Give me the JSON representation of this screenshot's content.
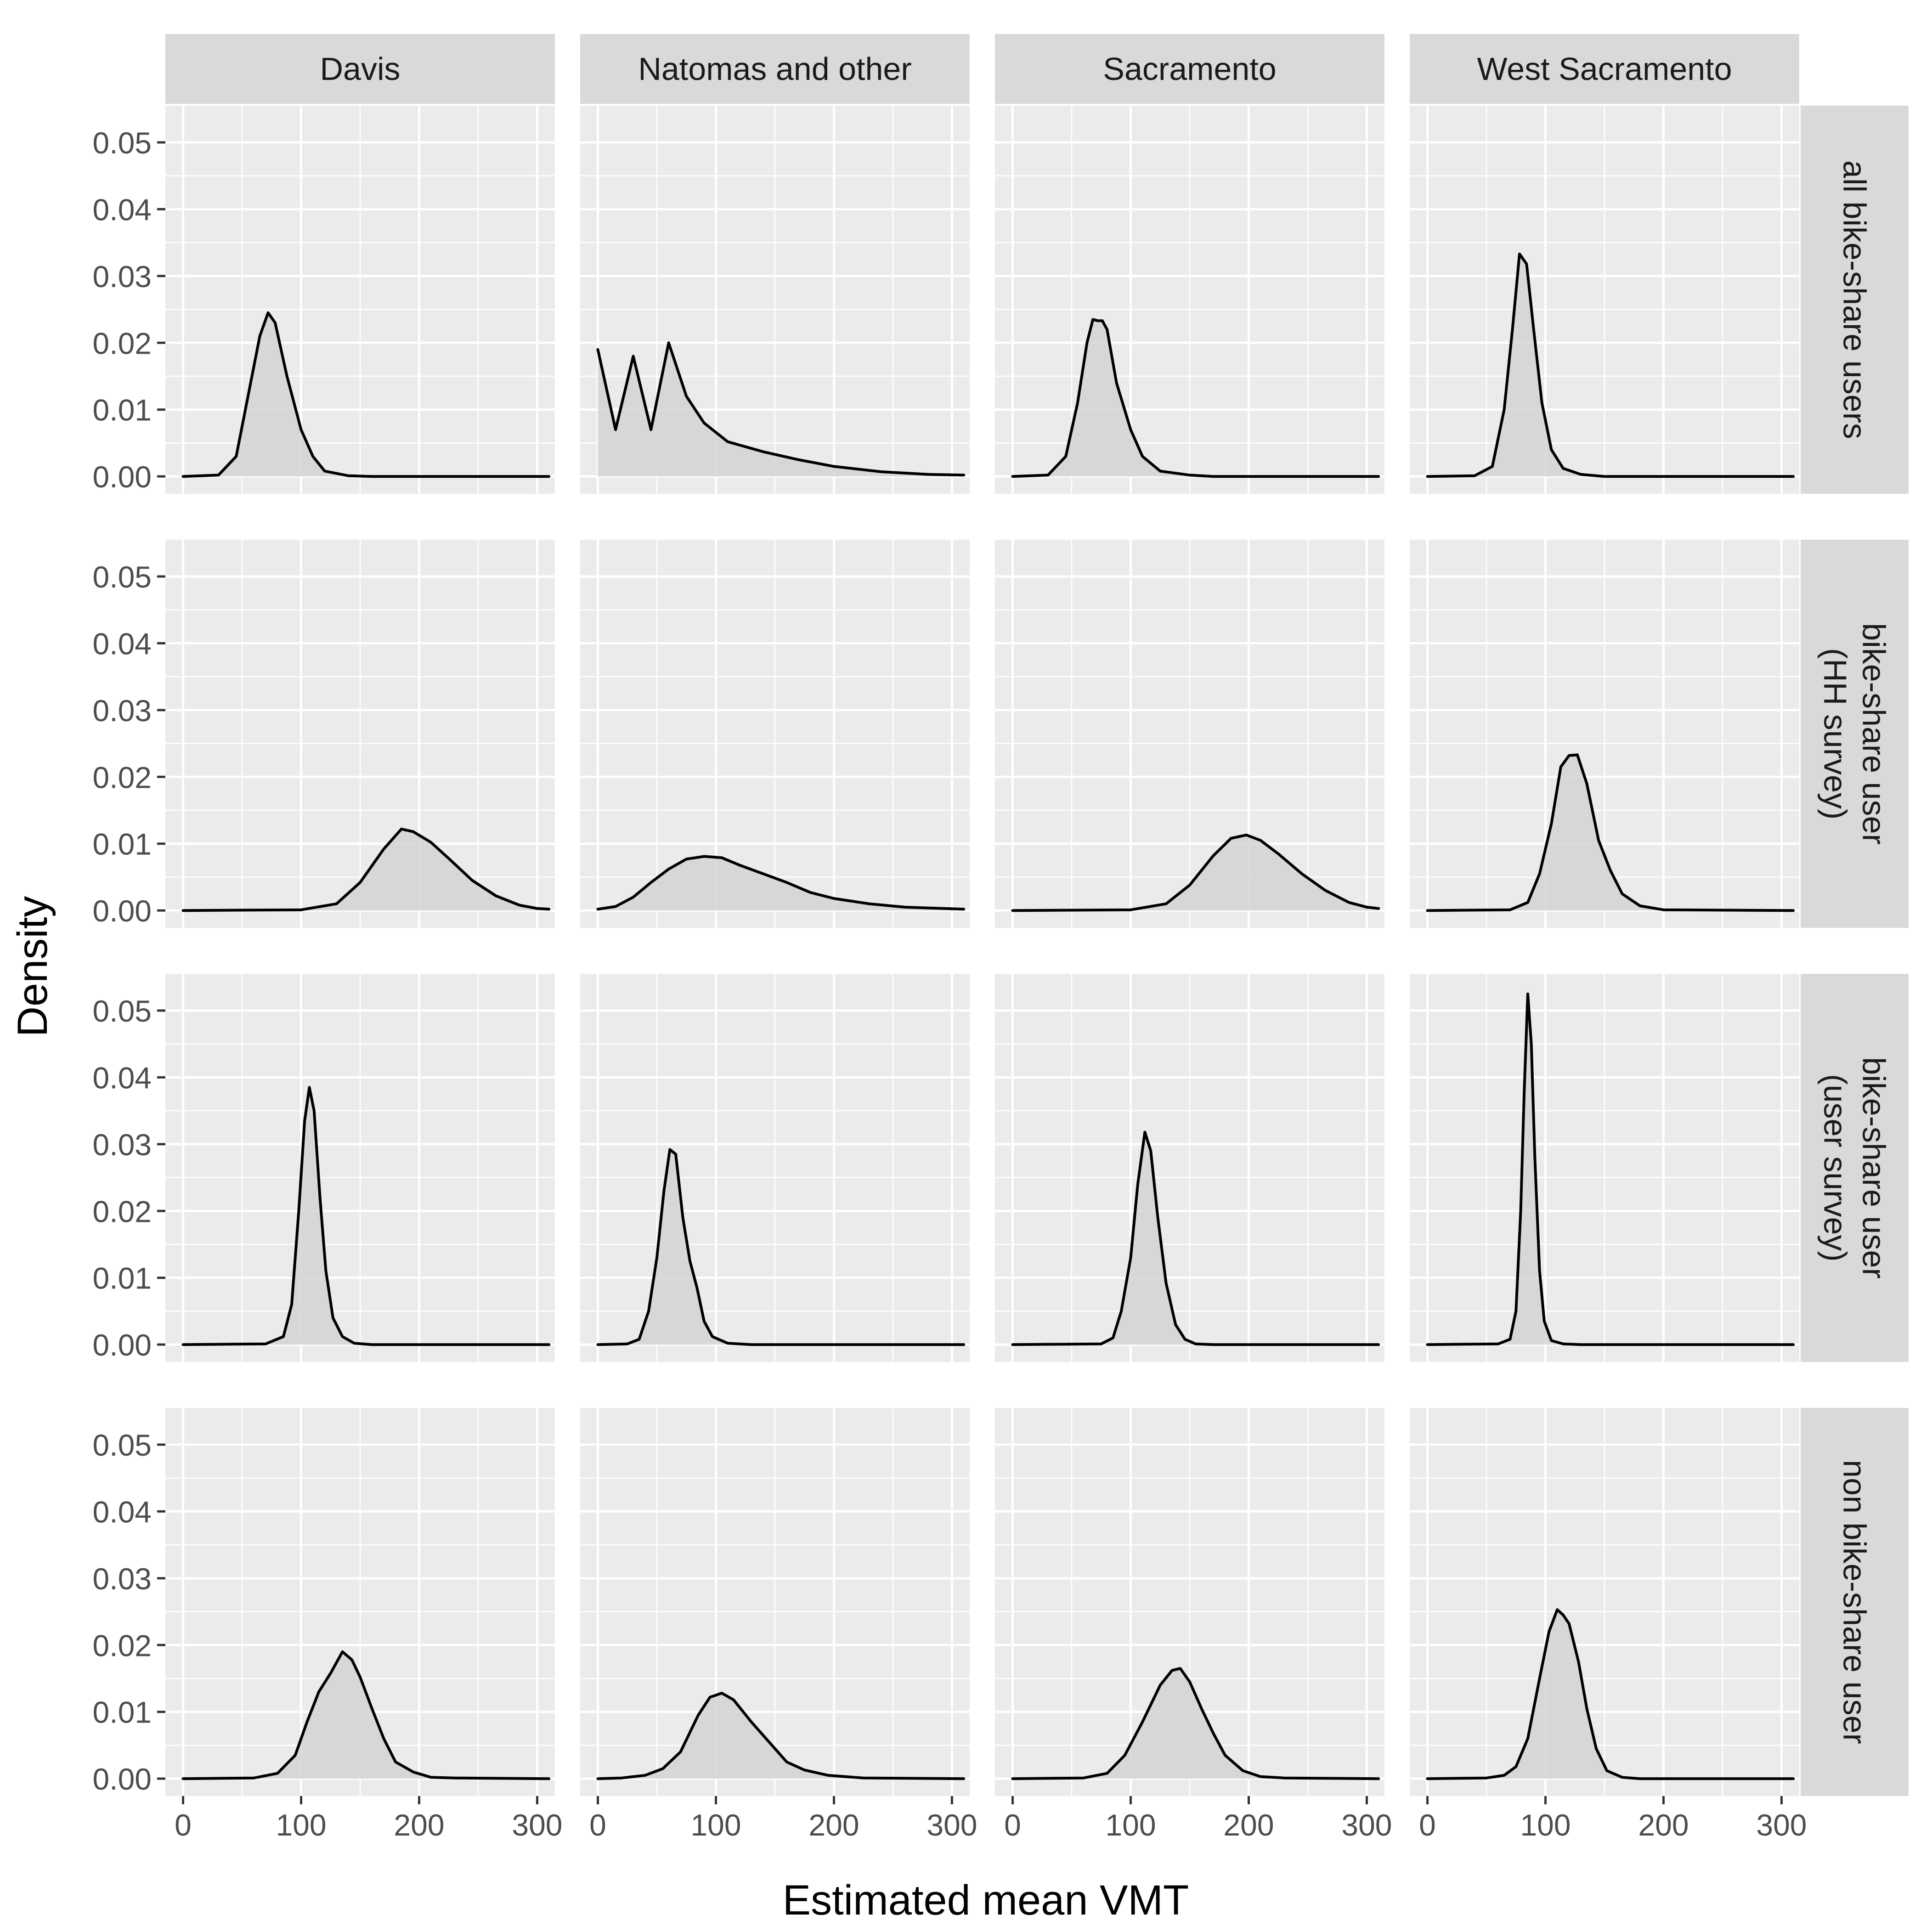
{
  "chart_data": {
    "type": "area",
    "subtype": "faceted-density",
    "xlabel": "Estimated mean VMT",
    "ylabel": "Density",
    "xlim": [
      -15,
      315
    ],
    "ylim": [
      -0.0026,
      0.0555
    ],
    "x_ticks": [
      0,
      100,
      200,
      300
    ],
    "x_tick_labels": [
      "0",
      "100",
      "200",
      "300"
    ],
    "y_ticks": [
      0,
      0.01,
      0.02,
      0.03,
      0.04,
      0.05
    ],
    "y_tick_labels": [
      "0.00",
      "0.01",
      "0.02",
      "0.03",
      "0.04",
      "0.05"
    ],
    "grid": true,
    "columns": [
      "Davis",
      "Natomas and other",
      "Sacramento",
      "West Sacramento"
    ],
    "rows": [
      {
        "label_lines": [
          "all bike-share users"
        ]
      },
      {
        "label_lines": [
          "bike-share user",
          "(HH survey)"
        ]
      },
      {
        "label_lines": [
          "bike-share user",
          "(user survey)"
        ]
      },
      {
        "label_lines": [
          "non bike-share user"
        ]
      }
    ],
    "colors": {
      "panel_bg": "#EBEBEB",
      "strip_bg": "#D9D9D9",
      "grid": "#FFFFFF",
      "line": "#000000",
      "fill": "#D3D3D3"
    },
    "panels": [
      [
        {
          "points": [
            [
              0,
              0
            ],
            [
              30,
              0.0002
            ],
            [
              45,
              0.003
            ],
            [
              55,
              0.012
            ],
            [
              65,
              0.021
            ],
            [
              72,
              0.0245
            ],
            [
              78,
              0.023
            ],
            [
              88,
              0.015
            ],
            [
              100,
              0.007
            ],
            [
              110,
              0.003
            ],
            [
              120,
              0.0008
            ],
            [
              140,
              0.0001
            ],
            [
              160,
              0
            ],
            [
              310,
              0
            ]
          ]
        },
        {
          "points": [
            [
              0,
              0.019
            ],
            [
              15,
              0.007
            ],
            [
              30,
              0.018
            ],
            [
              45,
              0.007
            ],
            [
              60,
              0.02
            ],
            [
              75,
              0.012
            ],
            [
              90,
              0.008
            ],
            [
              110,
              0.0052
            ],
            [
              140,
              0.0037
            ],
            [
              170,
              0.0025
            ],
            [
              200,
              0.0015
            ],
            [
              240,
              0.0007
            ],
            [
              280,
              0.0003
            ],
            [
              310,
              0.0002
            ]
          ]
        },
        {
          "points": [
            [
              0,
              0
            ],
            [
              30,
              0.0002
            ],
            [
              45,
              0.003
            ],
            [
              55,
              0.011
            ],
            [
              63,
              0.02
            ],
            [
              68,
              0.0235
            ],
            [
              72,
              0.0233
            ],
            [
              76,
              0.0233
            ],
            [
              80,
              0.022
            ],
            [
              88,
              0.014
            ],
            [
              100,
              0.007
            ],
            [
              110,
              0.003
            ],
            [
              125,
              0.0008
            ],
            [
              150,
              0.0002
            ],
            [
              170,
              0
            ],
            [
              310,
              0
            ]
          ]
        },
        {
          "points": [
            [
              0,
              0
            ],
            [
              40,
              0.0001
            ],
            [
              55,
              0.0015
            ],
            [
              65,
              0.01
            ],
            [
              72,
              0.022
            ],
            [
              78,
              0.0333
            ],
            [
              84,
              0.0318
            ],
            [
              90,
              0.022
            ],
            [
              97,
              0.011
            ],
            [
              105,
              0.004
            ],
            [
              115,
              0.0012
            ],
            [
              130,
              0.0003
            ],
            [
              150,
              0
            ],
            [
              310,
              0
            ]
          ]
        }
      ],
      [
        {
          "points": [
            [
              0,
              0
            ],
            [
              100,
              0.0001
            ],
            [
              130,
              0.001
            ],
            [
              150,
              0.0042
            ],
            [
              170,
              0.0092
            ],
            [
              185,
              0.0122
            ],
            [
              195,
              0.0118
            ],
            [
              210,
              0.0102
            ],
            [
              225,
              0.0078
            ],
            [
              245,
              0.0045
            ],
            [
              265,
              0.0022
            ],
            [
              285,
              0.0008
            ],
            [
              300,
              0.0003
            ],
            [
              310,
              0.0002
            ]
          ]
        },
        {
          "points": [
            [
              0,
              0.0002
            ],
            [
              15,
              0.0006
            ],
            [
              30,
              0.002
            ],
            [
              45,
              0.0042
            ],
            [
              60,
              0.0062
            ],
            [
              75,
              0.0077
            ],
            [
              90,
              0.0081
            ],
            [
              105,
              0.0079
            ],
            [
              120,
              0.0068
            ],
            [
              140,
              0.0055
            ],
            [
              160,
              0.0042
            ],
            [
              180,
              0.0027
            ],
            [
              200,
              0.0018
            ],
            [
              230,
              0.001
            ],
            [
              260,
              0.0005
            ],
            [
              310,
              0.0002
            ]
          ]
        },
        {
          "points": [
            [
              0,
              0
            ],
            [
              100,
              0.0001
            ],
            [
              130,
              0.001
            ],
            [
              150,
              0.0038
            ],
            [
              170,
              0.0082
            ],
            [
              185,
              0.0108
            ],
            [
              198,
              0.0113
            ],
            [
              210,
              0.0105
            ],
            [
              225,
              0.0085
            ],
            [
              245,
              0.0055
            ],
            [
              265,
              0.003
            ],
            [
              285,
              0.0012
            ],
            [
              300,
              0.0005
            ],
            [
              310,
              0.0003
            ]
          ]
        },
        {
          "points": [
            [
              0,
              0
            ],
            [
              70,
              0.0001
            ],
            [
              85,
              0.0012
            ],
            [
              95,
              0.0055
            ],
            [
              105,
              0.013
            ],
            [
              113,
              0.0215
            ],
            [
              120,
              0.0232
            ],
            [
              127,
              0.0233
            ],
            [
              135,
              0.019
            ],
            [
              145,
              0.0105
            ],
            [
              155,
              0.006
            ],
            [
              165,
              0.0025
            ],
            [
              180,
              0.0007
            ],
            [
              200,
              0.0001
            ],
            [
              310,
              0
            ]
          ]
        }
      ],
      [
        {
          "points": [
            [
              0,
              0
            ],
            [
              70,
              0.0001
            ],
            [
              85,
              0.0012
            ],
            [
              92,
              0.006
            ],
            [
              98,
              0.02
            ],
            [
              103,
              0.0335
            ],
            [
              107,
              0.0385
            ],
            [
              111,
              0.035
            ],
            [
              116,
              0.022
            ],
            [
              121,
              0.011
            ],
            [
              127,
              0.004
            ],
            [
              135,
              0.0012
            ],
            [
              145,
              0.0002
            ],
            [
              160,
              0
            ],
            [
              310,
              0
            ]
          ]
        },
        {
          "points": [
            [
              0,
              0
            ],
            [
              25,
              0.0001
            ],
            [
              35,
              0.0008
            ],
            [
              43,
              0.005
            ],
            [
              50,
              0.013
            ],
            [
              56,
              0.023
            ],
            [
              61,
              0.0292
            ],
            [
              66,
              0.0285
            ],
            [
              72,
              0.019
            ],
            [
              78,
              0.0125
            ],
            [
              84,
              0.0085
            ],
            [
              90,
              0.0035
            ],
            [
              97,
              0.0012
            ],
            [
              110,
              0.0002
            ],
            [
              130,
              0
            ],
            [
              310,
              0
            ]
          ]
        },
        {
          "points": [
            [
              0,
              0
            ],
            [
              75,
              0.0001
            ],
            [
              85,
              0.001
            ],
            [
              92,
              0.005
            ],
            [
              100,
              0.013
            ],
            [
              106,
              0.024
            ],
            [
              112,
              0.0318
            ],
            [
              117,
              0.029
            ],
            [
              123,
              0.019
            ],
            [
              130,
              0.0092
            ],
            [
              138,
              0.003
            ],
            [
              146,
              0.0008
            ],
            [
              155,
              0.0001
            ],
            [
              170,
              0
            ],
            [
              310,
              0
            ]
          ]
        },
        {
          "points": [
            [
              0,
              0
            ],
            [
              60,
              0.0001
            ],
            [
              70,
              0.0008
            ],
            [
              75,
              0.005
            ],
            [
              79,
              0.02
            ],
            [
              82,
              0.038
            ],
            [
              85,
              0.0525
            ],
            [
              88,
              0.045
            ],
            [
              91,
              0.028
            ],
            [
              95,
              0.011
            ],
            [
              99,
              0.0035
            ],
            [
              105,
              0.0006
            ],
            [
              115,
              0.0001
            ],
            [
              130,
              0
            ],
            [
              310,
              0
            ]
          ]
        }
      ],
      [
        {
          "points": [
            [
              0,
              0
            ],
            [
              60,
              0.0001
            ],
            [
              80,
              0.0008
            ],
            [
              95,
              0.0035
            ],
            [
              105,
              0.0085
            ],
            [
              115,
              0.013
            ],
            [
              125,
              0.0158
            ],
            [
              135,
              0.019
            ],
            [
              143,
              0.0178
            ],
            [
              150,
              0.0152
            ],
            [
              160,
              0.0105
            ],
            [
              170,
              0.006
            ],
            [
              180,
              0.0025
            ],
            [
              195,
              0.001
            ],
            [
              210,
              0.0002
            ],
            [
              230,
              0.0001
            ],
            [
              310,
              0
            ]
          ]
        },
        {
          "points": [
            [
              0,
              0
            ],
            [
              20,
              0.0001
            ],
            [
              40,
              0.0005
            ],
            [
              55,
              0.0015
            ],
            [
              70,
              0.004
            ],
            [
              85,
              0.0095
            ],
            [
              95,
              0.0122
            ],
            [
              105,
              0.0128
            ],
            [
              115,
              0.0118
            ],
            [
              130,
              0.0085
            ],
            [
              145,
              0.0055
            ],
            [
              160,
              0.0025
            ],
            [
              175,
              0.0013
            ],
            [
              195,
              0.0005
            ],
            [
              225,
              0.0001
            ],
            [
              310,
              0
            ]
          ]
        },
        {
          "points": [
            [
              0,
              0
            ],
            [
              60,
              0.0001
            ],
            [
              80,
              0.0008
            ],
            [
              95,
              0.0035
            ],
            [
              110,
              0.0085
            ],
            [
              125,
              0.014
            ],
            [
              135,
              0.0162
            ],
            [
              142,
              0.0165
            ],
            [
              150,
              0.0145
            ],
            [
              160,
              0.0105
            ],
            [
              170,
              0.0068
            ],
            [
              180,
              0.0035
            ],
            [
              195,
              0.0012
            ],
            [
              210,
              0.0003
            ],
            [
              230,
              0.0001
            ],
            [
              310,
              0
            ]
          ]
        },
        {
          "points": [
            [
              0,
              0
            ],
            [
              50,
              0.0001
            ],
            [
              65,
              0.0005
            ],
            [
              75,
              0.0018
            ],
            [
              85,
              0.006
            ],
            [
              95,
              0.015
            ],
            [
              103,
              0.022
            ],
            [
              110,
              0.0253
            ],
            [
              115,
              0.0245
            ],
            [
              120,
              0.0232
            ],
            [
              128,
              0.0175
            ],
            [
              135,
              0.0105
            ],
            [
              143,
              0.0045
            ],
            [
              152,
              0.0012
            ],
            [
              165,
              0.0002
            ],
            [
              180,
              0
            ],
            [
              310,
              0
            ]
          ]
        }
      ]
    ]
  }
}
